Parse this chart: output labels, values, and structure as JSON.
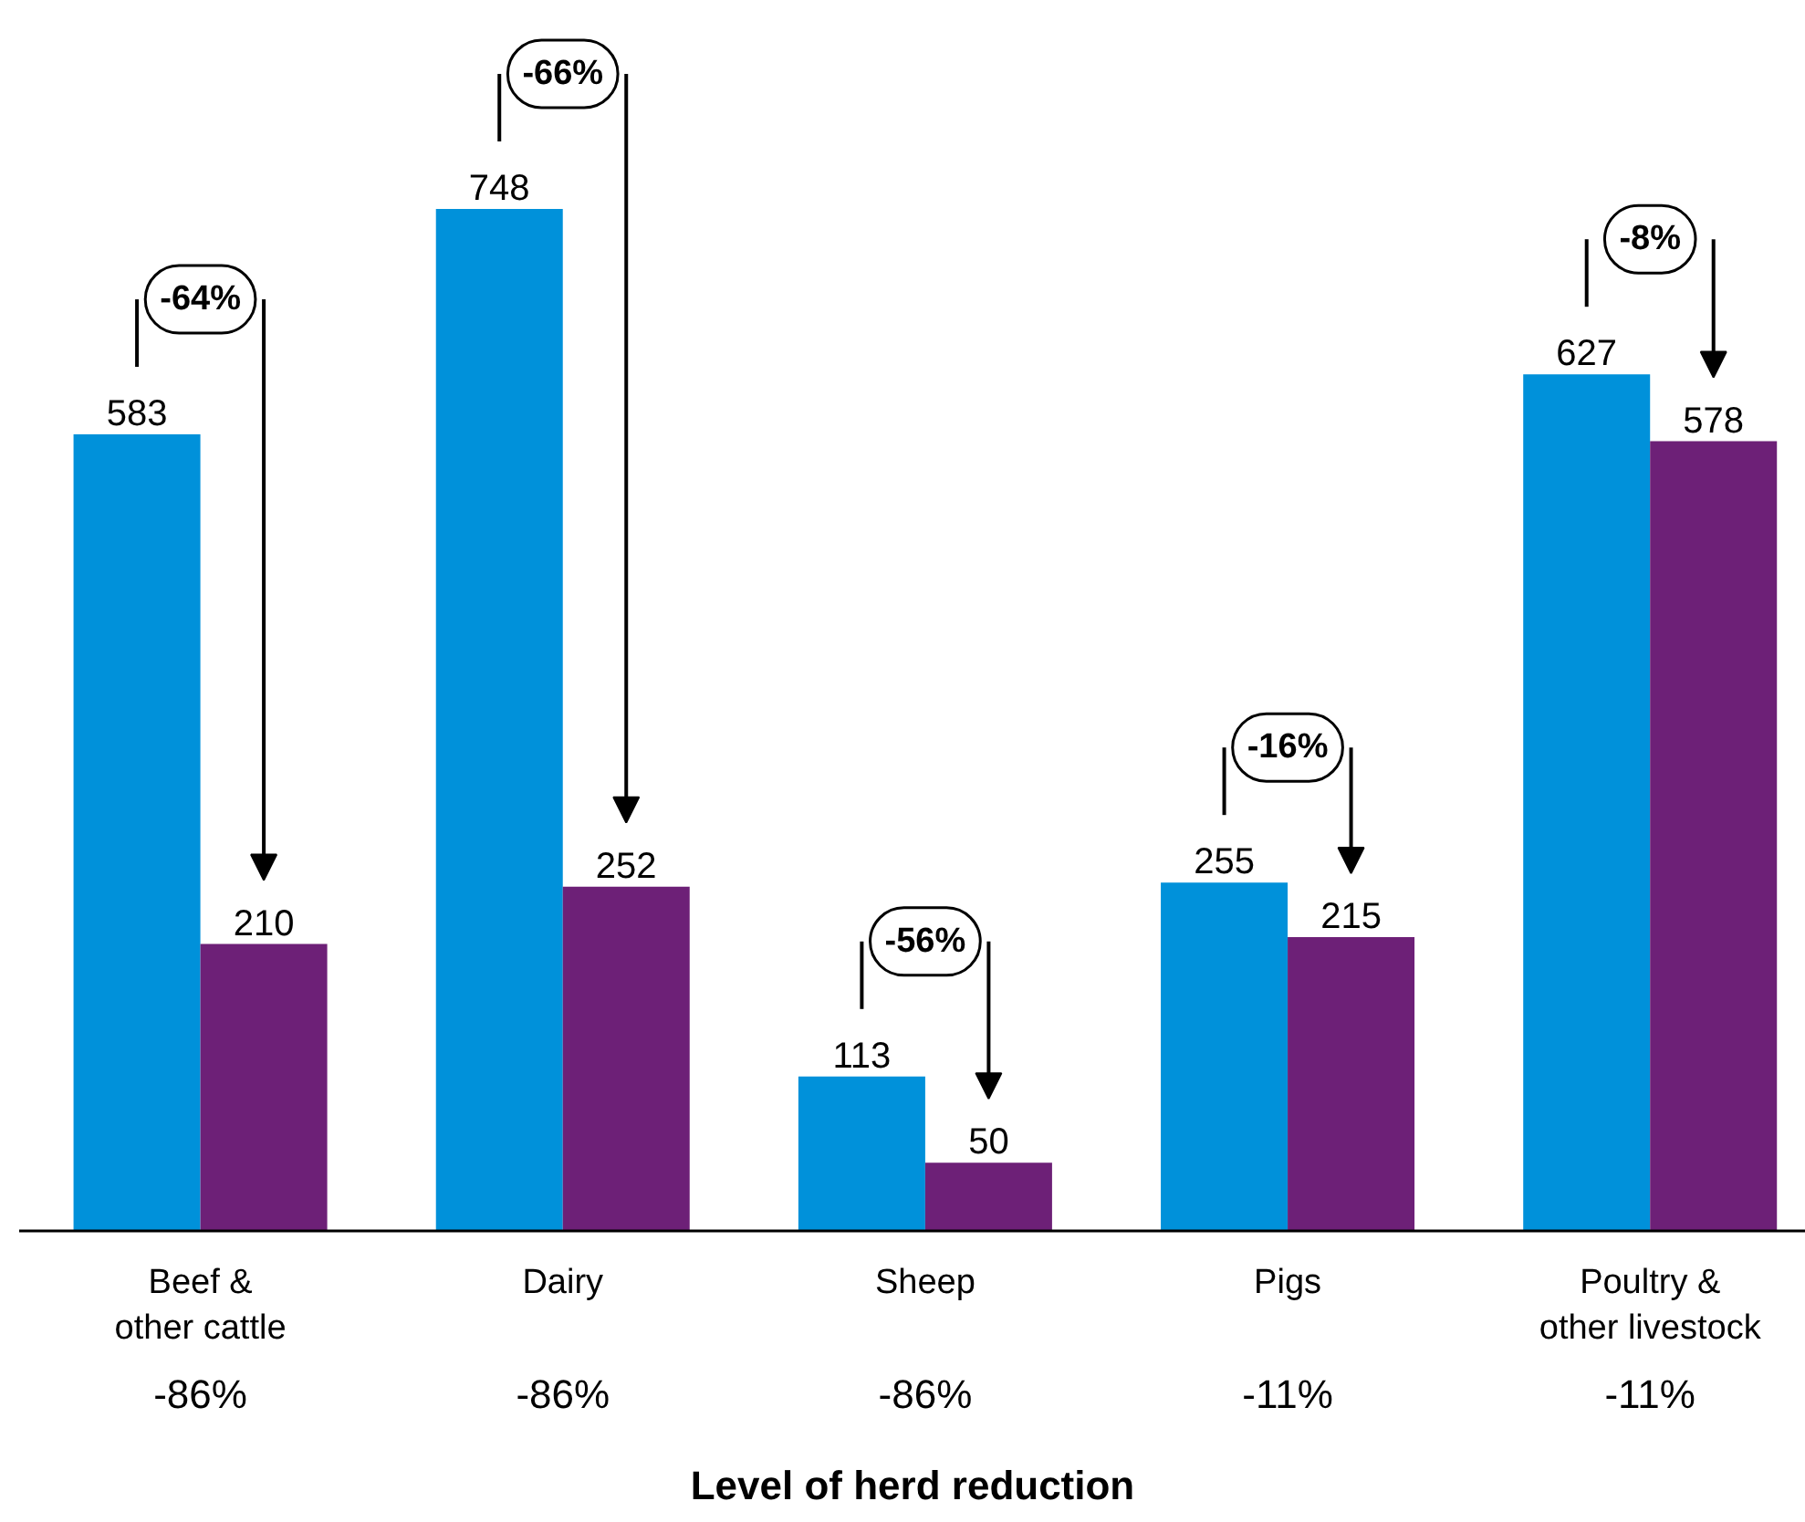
{
  "chart_data": {
    "type": "bar",
    "categories": [
      "Beef &\nother cattle",
      "Dairy",
      "Sheep",
      "Pigs",
      "Poultry &\nother livestock"
    ],
    "series": [
      {
        "color": "#0091da",
        "values": [
          583,
          748,
          113,
          255,
          627
        ]
      },
      {
        "color": "#6d2077",
        "values": [
          210,
          252,
          50,
          215,
          578
        ]
      }
    ],
    "data_labels": true,
    "tick_labels": "x",
    "xlabel": "Level of herd reduction",
    "annotations": [
      "-64%",
      "-66%",
      "-56%",
      "-16%",
      "-8%",
      "-86%",
      "-86%",
      "-86%",
      "-11%",
      "-11%"
    ]
  }
}
